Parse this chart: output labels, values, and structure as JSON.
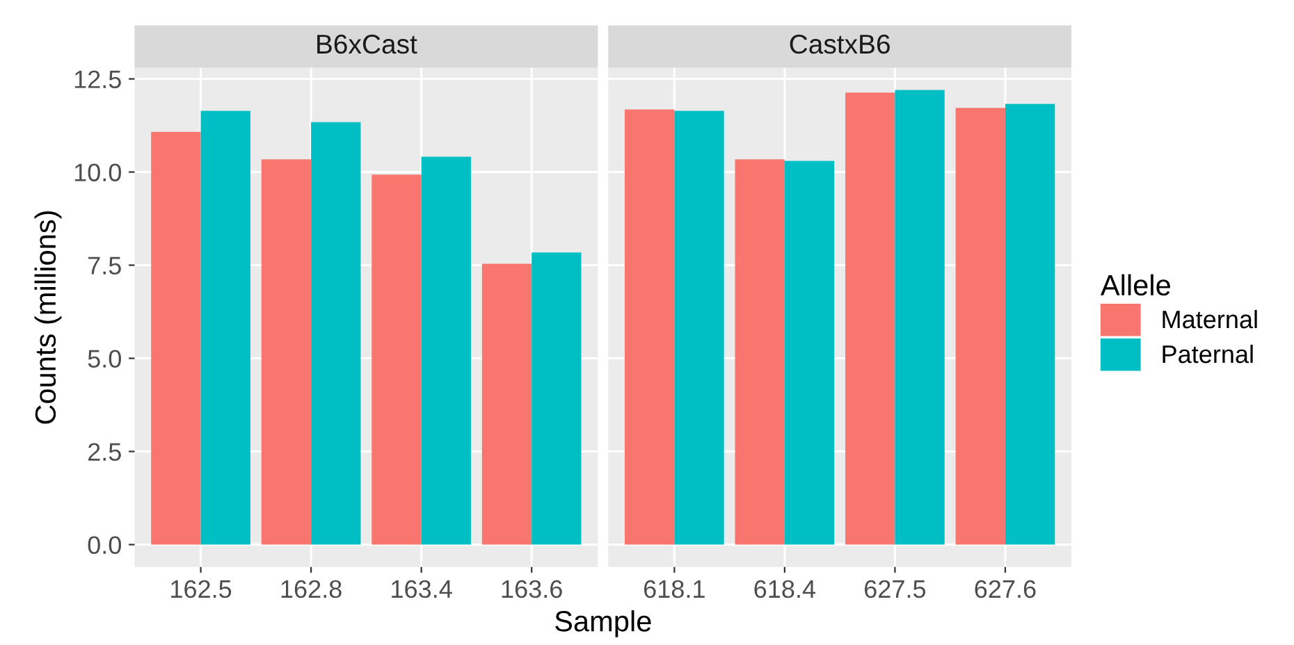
{
  "chart_data": [
    {
      "type": "bar",
      "title": "B6xCast",
      "xlabel": "Sample",
      "ylabel": "Counts (millions)",
      "legend_title": "Allele",
      "legend": "right",
      "categories": [
        "162.5",
        "162.8",
        "163.4",
        "163.6"
      ],
      "series": [
        {
          "name": "Maternal",
          "color": "#f8766d",
          "values": [
            11.08,
            10.34,
            9.93,
            7.54
          ]
        },
        {
          "name": "Paternal",
          "color": "#00bfc4",
          "values": [
            11.64,
            11.34,
            10.41,
            7.84
          ]
        }
      ],
      "ylim": [
        -0.6,
        12.8
      ],
      "yticks": [
        {
          "value": 0,
          "label": "0.0"
        },
        2.5,
        {
          "value": 5,
          "label": "5.0"
        },
        7.5,
        {
          "value": 10,
          "label": "10.0"
        },
        12.5
      ],
      "grid": true
    },
    {
      "type": "bar",
      "title": "CastxB6",
      "categories": [
        "618.1",
        "618.4",
        "627.5",
        "627.6"
      ],
      "series": [
        {
          "color": "#f8766d",
          "values": [
            11.68,
            10.34,
            12.13,
            11.72
          ]
        },
        {
          "color": "#00bfc4",
          "values": [
            11.64,
            10.3,
            12.2,
            11.83
          ]
        }
      ],
      "ylim": [
        -0.6,
        12.8
      ],
      "grid": true,
      "tick_labels": "x"
    }
  ]
}
